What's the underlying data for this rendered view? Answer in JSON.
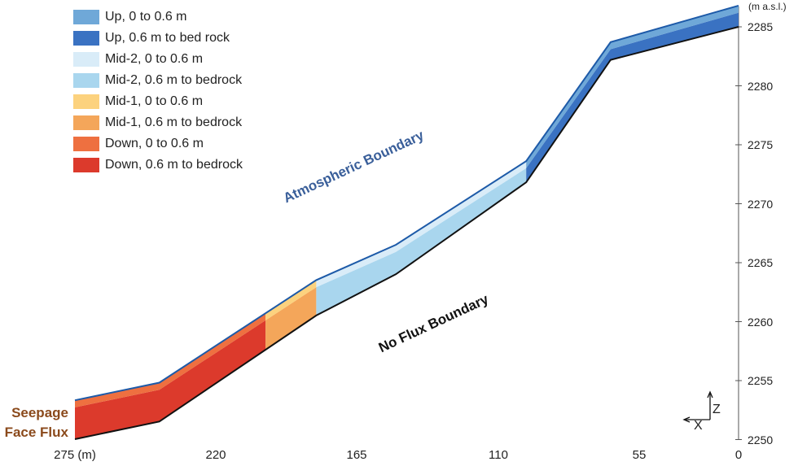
{
  "legend": [
    {
      "label": "Up, 0  to 0.6 m",
      "color": "#6fa8d8"
    },
    {
      "label": "Up, 0.6 m to bed rock",
      "color": "#3a72c2"
    },
    {
      "label": "Mid-2, 0 to 0.6 m",
      "color": "#d9ecf8"
    },
    {
      "label": "Mid-2, 0.6 m to bedrock",
      "color": "#a9d6ee"
    },
    {
      "label": "Mid-1, 0 to 0.6 m",
      "color": "#fcd27e"
    },
    {
      "label": "Mid-1, 0.6 m to bedrock",
      "color": "#f4a65a"
    },
    {
      "label": "Down, 0 to 0.6 m",
      "color": "#ee7040"
    },
    {
      "label": "Down, 0.6 m to bedrock",
      "color": "#dc3a2c"
    }
  ],
  "annotations": {
    "atmospheric": "Atmospheric Boundary",
    "no_flux": "No Flux Boundary",
    "seepage_line1": "Seepage",
    "seepage_line2": "Face Flux"
  },
  "axes": {
    "x_ticks": [
      "275 (m)",
      "220",
      "165",
      "110",
      "55",
      "0"
    ],
    "y_ticks": [
      "2285",
      "2280",
      "2275",
      "2270",
      "2265",
      "2260",
      "2255",
      "2250"
    ],
    "y_unit": "(m a.s.l.)",
    "z_label": "Z",
    "x_label": "X"
  },
  "profile": {
    "distance_from_top_m": [
      275,
      240,
      175,
      142,
      88,
      53,
      0
    ],
    "surface_elev_m": [
      2253.3,
      2254.8,
      2263.5,
      2266.5,
      2273.6,
      2283.7,
      2286.8
    ],
    "bedrock_elev_m": [
      2250.0,
      2251.5,
      2260.5,
      2264.0,
      2271.8,
      2282.2,
      2285.0
    ],
    "zones": [
      {
        "name": "Down",
        "from_m": 275,
        "to_m": 196,
        "top_color": "#ee7040",
        "deep_color": "#dc3a2c"
      },
      {
        "name": "Mid-1",
        "from_m": 196,
        "to_m": 175,
        "top_color": "#fcd27e",
        "deep_color": "#f4a65a"
      },
      {
        "name": "Mid-2",
        "from_m": 175,
        "to_m": 88,
        "top_color": "#d9ecf8",
        "deep_color": "#a9d6ee"
      },
      {
        "name": "Up",
        "from_m": 88,
        "to_m": 0,
        "top_color": "#6fa8d8",
        "deep_color": "#3a72c2"
      }
    ],
    "x_range_m": [
      275,
      0
    ],
    "y_range_m": [
      2250,
      2285
    ]
  }
}
